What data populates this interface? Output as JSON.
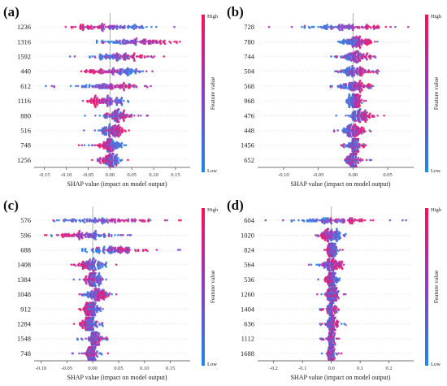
{
  "chart_data": [
    {
      "type": "scatter",
      "subtype": "shap-beeswarm",
      "panel": "(a)",
      "features": [
        "1236",
        "1316",
        "1592",
        "440",
        "612",
        "1116",
        "880",
        "516",
        "748",
        "1256"
      ],
      "xlabel": "SHAP value (impact on model output)",
      "xlim": [
        -0.17,
        0.18
      ],
      "xticks": [
        -0.15,
        -0.1,
        -0.05,
        0.0,
        0.05,
        0.1,
        0.15
      ],
      "xtick_labels": [
        "-0.15",
        "-0.10",
        "-0.05",
        "0.00",
        "0.05",
        "0.10",
        "0.15"
      ],
      "colorbar": {
        "title": "Feature value",
        "high": "High",
        "low": "Low"
      },
      "distributions": [
        {
          "feature": "1236",
          "min": -0.13,
          "max": 0.15,
          "low_center": 0.07,
          "high_center": -0.05,
          "spread": 0.045
        },
        {
          "feature": "1316",
          "min": -0.03,
          "max": 0.16,
          "low_center": -0.01,
          "high_center": 0.13,
          "spread": 0.04
        },
        {
          "feature": "1592",
          "min": -0.1,
          "max": 0.14,
          "low_center": -0.02,
          "high_center": 0.06,
          "spread": 0.035
        },
        {
          "feature": "440",
          "min": -0.09,
          "max": 0.1,
          "low_center": 0.06,
          "high_center": -0.04,
          "spread": 0.03
        },
        {
          "feature": "612",
          "min": -0.15,
          "max": 0.12,
          "low_center": -0.06,
          "high_center": 0.05,
          "spread": 0.04
        },
        {
          "feature": "1116",
          "min": -0.07,
          "max": 0.05,
          "low_center": 0.03,
          "high_center": -0.04,
          "spread": 0.02
        },
        {
          "feature": "880",
          "min": -0.06,
          "max": 0.1,
          "low_center": 0.01,
          "high_center": 0.02,
          "spread": 0.025
        },
        {
          "feature": "516",
          "min": -0.07,
          "max": 0.05,
          "low_center": -0.01,
          "high_center": 0.02,
          "spread": 0.018
        },
        {
          "feature": "748",
          "min": -0.08,
          "max": 0.04,
          "low_center": 0.02,
          "high_center": -0.02,
          "spread": 0.015
        },
        {
          "feature": "1256",
          "min": -0.06,
          "max": 0.05,
          "low_center": 0.01,
          "high_center": -0.01,
          "spread": 0.015
        }
      ]
    },
    {
      "type": "scatter",
      "subtype": "shap-beeswarm",
      "panel": "(b)",
      "features": [
        "728",
        "780",
        "744",
        "504",
        "568",
        "968",
        "476",
        "448",
        "1456",
        "652"
      ],
      "xlabel": "SHAP value (impact on model output)",
      "xlim": [
        -0.135,
        0.085
      ],
      "xticks": [
        -0.1,
        -0.05,
        0.0,
        0.05
      ],
      "xtick_labels": [
        "-0.10",
        "-0.05",
        "0.00",
        "0.05"
      ],
      "colorbar": {
        "title": "Feature value",
        "high": "High",
        "low": "Low"
      },
      "distributions": [
        {
          "feature": "728",
          "min": -0.13,
          "max": 0.08,
          "low_center": -0.05,
          "high_center": 0.03,
          "spread": 0.03
        },
        {
          "feature": "780",
          "min": -0.03,
          "max": 0.04,
          "low_center": -0.01,
          "high_center": 0.02,
          "spread": 0.015
        },
        {
          "feature": "744",
          "min": -0.04,
          "max": 0.04,
          "low_center": -0.01,
          "high_center": 0.02,
          "spread": 0.015
        },
        {
          "feature": "504",
          "min": -0.03,
          "max": 0.04,
          "low_center": -0.01,
          "high_center": 0.015,
          "spread": 0.012
        },
        {
          "feature": "568",
          "min": -0.04,
          "max": 0.04,
          "low_center": -0.015,
          "high_center": 0.015,
          "spread": 0.015
        },
        {
          "feature": "968",
          "min": -0.01,
          "max": 0.02,
          "low_center": -0.005,
          "high_center": 0.01,
          "spread": 0.006
        },
        {
          "feature": "476",
          "min": -0.03,
          "max": 0.05,
          "low_center": 0.0,
          "high_center": 0.02,
          "spread": 0.013
        },
        {
          "feature": "448",
          "min": -0.03,
          "max": 0.03,
          "low_center": -0.01,
          "high_center": 0.01,
          "spread": 0.01
        },
        {
          "feature": "1456",
          "min": -0.02,
          "max": 0.02,
          "low_center": 0.0,
          "high_center": 0.005,
          "spread": 0.008
        },
        {
          "feature": "652",
          "min": -0.03,
          "max": 0.03,
          "low_center": 0.0,
          "high_center": 0.0,
          "spread": 0.009
        }
      ]
    },
    {
      "type": "scatter",
      "subtype": "shap-beeswarm",
      "panel": "(c)",
      "features": [
        "576",
        "596",
        "688",
        "1408",
        "1384",
        "1048",
        "912",
        "1284",
        "1548",
        "748"
      ],
      "xlabel": "SHAP value (impact on model output)",
      "xlim": [
        -0.11,
        0.185
      ],
      "xticks": [
        -0.1,
        -0.05,
        0.0,
        0.05,
        0.1,
        0.15
      ],
      "xtick_labels": [
        "-0.10",
        "-0.05",
        "0.00",
        "0.05",
        "0.10",
        "0.15"
      ],
      "colorbar": {
        "title": "Feature value",
        "high": "High",
        "low": "Low"
      },
      "distributions": [
        {
          "feature": "576",
          "min": -0.1,
          "max": 0.17,
          "low_center": -0.04,
          "high_center": 0.09,
          "spread": 0.05
        },
        {
          "feature": "596",
          "min": -0.1,
          "max": 0.1,
          "low_center": 0.02,
          "high_center": -0.05,
          "spread": 0.035
        },
        {
          "feature": "688",
          "min": -0.02,
          "max": 0.17,
          "low_center": 0.0,
          "high_center": 0.08,
          "spread": 0.035
        },
        {
          "feature": "1408",
          "min": -0.05,
          "max": 0.05,
          "low_center": 0.01,
          "high_center": -0.02,
          "spread": 0.018
        },
        {
          "feature": "1384",
          "min": -0.04,
          "max": 0.03,
          "low_center": 0.01,
          "high_center": -0.01,
          "spread": 0.013
        },
        {
          "feature": "1048",
          "min": -0.03,
          "max": 0.05,
          "low_center": -0.01,
          "high_center": 0.02,
          "spread": 0.015
        },
        {
          "feature": "912",
          "min": -0.03,
          "max": 0.02,
          "low_center": 0.005,
          "high_center": -0.01,
          "spread": 0.01
        },
        {
          "feature": "1284",
          "min": -0.04,
          "max": 0.02,
          "low_center": 0.0,
          "high_center": -0.015,
          "spread": 0.012
        },
        {
          "feature": "1548",
          "min": -0.03,
          "max": 0.03,
          "low_center": 0.0,
          "high_center": 0.005,
          "spread": 0.012
        },
        {
          "feature": "748",
          "min": -0.04,
          "max": 0.03,
          "low_center": 0.0,
          "high_center": -0.005,
          "spread": 0.012
        }
      ]
    },
    {
      "type": "scatter",
      "subtype": "shap-beeswarm",
      "panel": "(d)",
      "features": [
        "604",
        "1020",
        "824",
        "564",
        "536",
        "1260",
        "1404",
        "636",
        "1112",
        "1688"
      ],
      "xlabel": "SHAP value (impact on model output)",
      "xlim": [
        -0.25,
        0.28
      ],
      "xticks": [
        -0.2,
        -0.1,
        0.0,
        0.1,
        0.2
      ],
      "xtick_labels": [
        "-0.2",
        "-0.1",
        "0.0",
        "0.1",
        "0.2"
      ],
      "colorbar": {
        "title": "Feature value",
        "high": "High",
        "low": "Low"
      },
      "distributions": [
        {
          "feature": "604",
          "min": -0.23,
          "max": 0.26,
          "low_center": -0.08,
          "high_center": 0.1,
          "spread": 0.07
        },
        {
          "feature": "1020",
          "min": -0.07,
          "max": 0.05,
          "low_center": 0.02,
          "high_center": -0.03,
          "spread": 0.025
        },
        {
          "feature": "824",
          "min": -0.04,
          "max": 0.04,
          "low_center": 0.01,
          "high_center": -0.01,
          "spread": 0.015
        },
        {
          "feature": "564",
          "min": -0.08,
          "max": 0.06,
          "low_center": -0.02,
          "high_center": 0.02,
          "spread": 0.025
        },
        {
          "feature": "536",
          "min": -0.05,
          "max": 0.03,
          "low_center": 0.01,
          "high_center": -0.01,
          "spread": 0.015
        },
        {
          "feature": "1260",
          "min": -0.05,
          "max": 0.05,
          "low_center": 0.0,
          "high_center": 0.01,
          "spread": 0.018
        },
        {
          "feature": "1404",
          "min": -0.04,
          "max": 0.03,
          "low_center": 0.0,
          "high_center": 0.0,
          "spread": 0.012
        },
        {
          "feature": "636",
          "min": -0.05,
          "max": 0.06,
          "low_center": -0.005,
          "high_center": 0.01,
          "spread": 0.015
        },
        {
          "feature": "1112",
          "min": -0.04,
          "max": 0.03,
          "low_center": 0.0,
          "high_center": 0.0,
          "spread": 0.012
        },
        {
          "feature": "1688",
          "min": -0.04,
          "max": 0.04,
          "low_center": 0.0,
          "high_center": 0.0,
          "spread": 0.012
        }
      ]
    }
  ],
  "colors": {
    "low": "#1e88e5",
    "high": "#ff0d57",
    "mid": "#8a3fc9",
    "zero_line": "#999999"
  }
}
